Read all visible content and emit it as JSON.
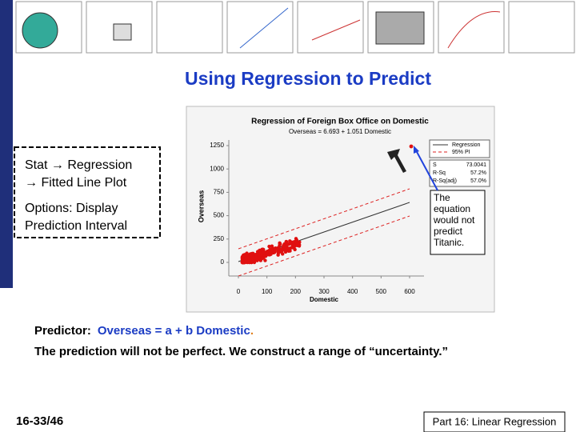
{
  "slide": {
    "title": "Using Regression to Predict",
    "instructions": [
      "Stat → Regression",
      "→ Fitted Line Plot",
      "Options: Display",
      "Prediction Interval"
    ],
    "figure": {
      "title": "Regression of Foreign Box Office on Domestic",
      "subtitle": "Overseas = 6.693 + 1.051 Domestic",
      "ylabel": "Overseas",
      "xlabel": "Domestic",
      "yticks": [
        0,
        250,
        500,
        750,
        1000,
        1250
      ],
      "xticks": [
        0,
        100,
        200,
        300,
        400,
        500,
        600
      ],
      "legend": [
        "Regression",
        "95% PI"
      ],
      "stats": [
        [
          "S",
          "73.0041"
        ],
        [
          "R-Sq",
          "57.2%"
        ],
        [
          "R-Sq(adj)",
          "57.0%"
        ]
      ]
    },
    "callout": "The equation would not predict Titanic.",
    "predictor": {
      "label": "Predictor:",
      "equation": "Overseas = a + b Domestic",
      "period": "."
    },
    "note": "The prediction will not be perfect.  We construct a range of “uncertainty.”",
    "page": "16-33/46",
    "footer": "Part 16: Linear Regression"
  }
}
